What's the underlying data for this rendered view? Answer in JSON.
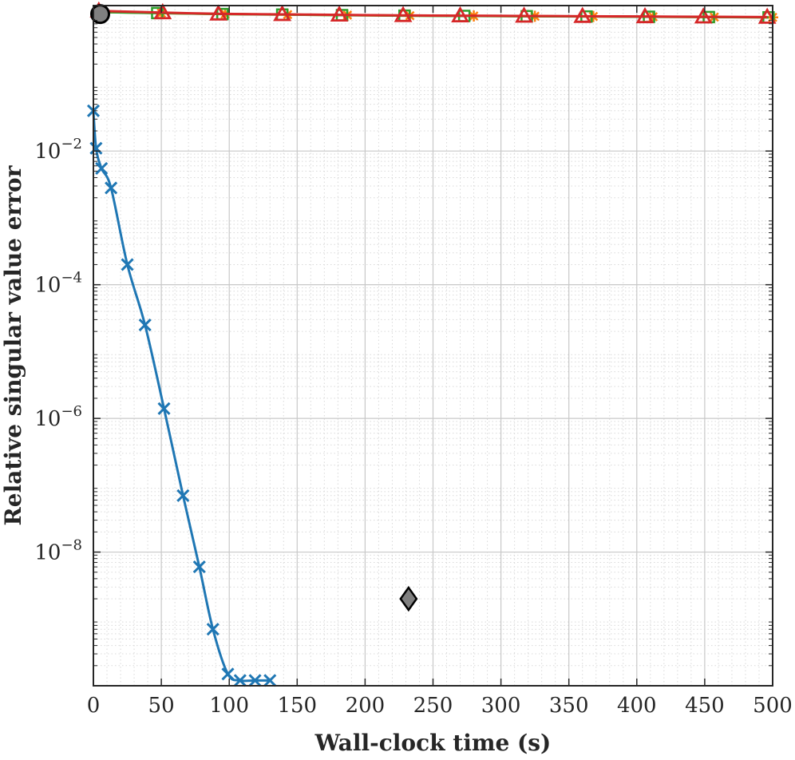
{
  "chart_data": {
    "type": "line",
    "title": "",
    "xlabel": "Wall-clock time (s)",
    "ylabel": "Relative singular value error",
    "xlim": [
      0,
      500
    ],
    "ylim": [
      1e-10,
      1.5
    ],
    "yscale": "log",
    "grid": true,
    "minor_grid": true,
    "legend": "none",
    "x_ticks": [
      0,
      50,
      100,
      150,
      200,
      250,
      300,
      350,
      400,
      450,
      500
    ],
    "x_tick_labels": [
      "0",
      "50",
      "100",
      "150",
      "200",
      "250",
      "300",
      "350",
      "400",
      "450",
      "500"
    ],
    "y_ticks": [
      1e-08,
      1e-06,
      0.0001,
      0.01
    ],
    "y_tick_labels": [
      {
        "base": "10",
        "exp": "−8"
      },
      {
        "base": "10",
        "exp": "−6"
      },
      {
        "base": "10",
        "exp": "−4"
      },
      {
        "base": "10",
        "exp": "−2"
      }
    ],
    "series": [
      {
        "color": "#1f77b4",
        "marker": "x",
        "line": "solid",
        "x": [
          0,
          2,
          6,
          13,
          25,
          38,
          52,
          66,
          78,
          88,
          99,
          108,
          119,
          130
        ],
        "y": [
          0.04,
          0.011,
          0.0055,
          0.0028,
          0.0002,
          2.5e-05,
          1.4e-06,
          7e-08,
          6e-09,
          7e-10,
          1.5e-10,
          1.2e-10,
          1.2e-10,
          1.2e-10
        ]
      },
      {
        "color": "#ff7f0e",
        "marker": "asterisk",
        "line": "solid",
        "x": [
          4,
          50,
          97,
          143,
          187,
          233,
          280,
          325,
          368,
          412,
          457,
          500
        ],
        "y": [
          1.2,
          1.16,
          1.12,
          1.1,
          1.08,
          1.06,
          1.05,
          1.04,
          1.03,
          1.02,
          1.01,
          1.0
        ]
      },
      {
        "color": "#2ca02c",
        "marker": "square",
        "line": "solid",
        "x": [
          4,
          47,
          95,
          139,
          183,
          229,
          273,
          319,
          363,
          409,
          453,
          497
        ],
        "y": [
          1.2,
          1.16,
          1.12,
          1.1,
          1.08,
          1.06,
          1.05,
          1.04,
          1.03,
          1.02,
          1.01,
          1.0
        ]
      },
      {
        "color": "#d62728",
        "marker": "triangle",
        "line": "solid",
        "x": [
          4,
          51,
          92,
          139,
          181,
          228,
          270,
          317,
          360,
          406,
          449,
          496
        ],
        "y": [
          1.25,
          1.18,
          1.13,
          1.11,
          1.09,
          1.07,
          1.06,
          1.05,
          1.04,
          1.03,
          1.02,
          1.01
        ]
      }
    ],
    "points": [
      {
        "marker": "circle",
        "fill": "#808080",
        "x": 5,
        "y": 1.12
      },
      {
        "marker": "diamond",
        "fill": "#808080",
        "x": 232,
        "y": 2e-09
      }
    ]
  }
}
